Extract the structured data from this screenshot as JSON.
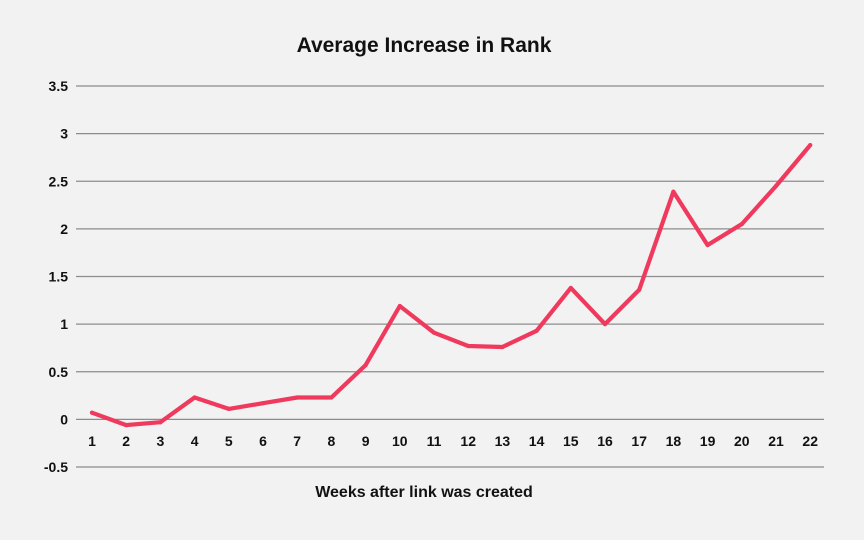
{
  "chart_data": {
    "type": "line",
    "title": "Average Increase in Rank",
    "xlabel": "Weeks after link was created",
    "ylabel": "",
    "categories": [
      "1",
      "2",
      "3",
      "4",
      "5",
      "6",
      "7",
      "8",
      "9",
      "10",
      "11",
      "12",
      "13",
      "14",
      "15",
      "16",
      "17",
      "18",
      "19",
      "20",
      "21",
      "22"
    ],
    "y_ticks": [
      "3.5",
      "3",
      "2.5",
      "2",
      "1.5",
      "1",
      "0.5",
      "0",
      "-0.5"
    ],
    "ylim": [
      -0.5,
      3.5
    ],
    "grid": true,
    "series": [
      {
        "values": [
          0.07,
          -0.06,
          -0.03,
          0.23,
          0.11,
          0.17,
          0.23,
          0.23,
          0.57,
          1.19,
          0.91,
          0.77,
          0.76,
          0.93,
          1.38,
          1.0,
          1.36,
          2.39,
          1.83,
          2.05,
          2.45,
          2.88
        ],
        "color": "#ef3a5d"
      }
    ]
  }
}
